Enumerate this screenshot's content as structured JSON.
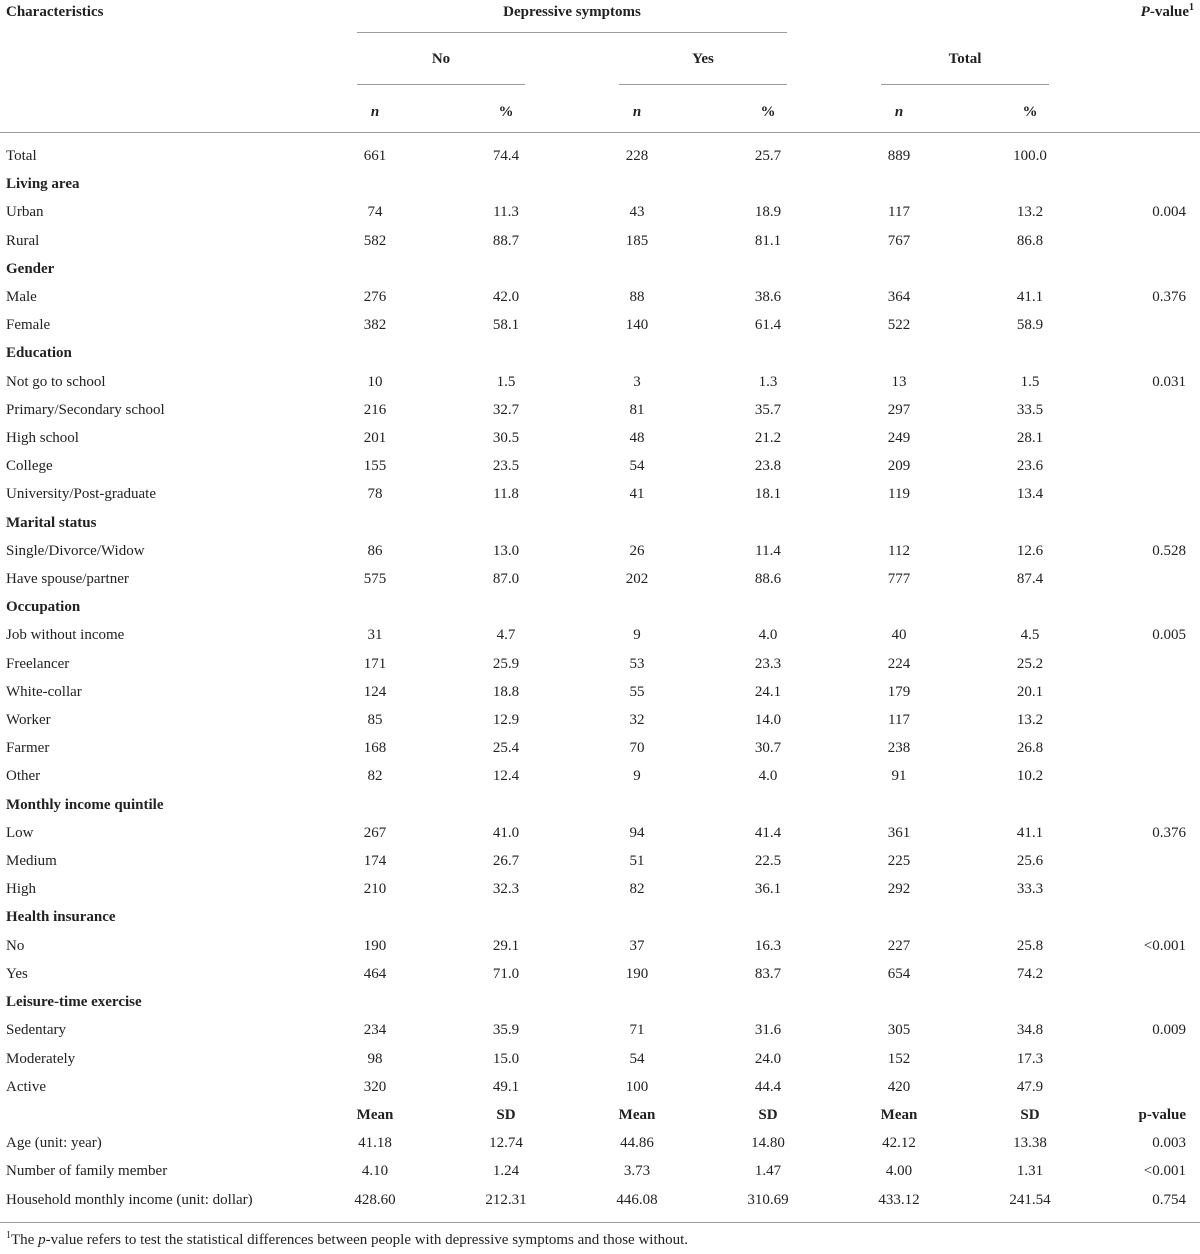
{
  "header": {
    "characteristics": "Characteristics",
    "depressive_symptoms": "Depressive symptoms",
    "p_value_label": "P",
    "p_value_suffix": "-value",
    "p_value_sup": "1",
    "no": "No",
    "yes": "Yes",
    "total": "Total",
    "n": "n",
    "percent": "%"
  },
  "rows": [
    {
      "type": "data",
      "label": "Total",
      "cells": [
        "661",
        "74.4",
        "228",
        "25.7",
        "889",
        "100.0"
      ],
      "p": ""
    },
    {
      "type": "section",
      "label": "Living area"
    },
    {
      "type": "data",
      "label": "Urban",
      "cells": [
        "74",
        "11.3",
        "43",
        "18.9",
        "117",
        "13.2"
      ],
      "p": "0.004"
    },
    {
      "type": "data",
      "label": "Rural",
      "cells": [
        "582",
        "88.7",
        "185",
        "81.1",
        "767",
        "86.8"
      ],
      "p": ""
    },
    {
      "type": "section",
      "label": "Gender"
    },
    {
      "type": "data",
      "label": "Male",
      "cells": [
        "276",
        "42.0",
        "88",
        "38.6",
        "364",
        "41.1"
      ],
      "p": "0.376"
    },
    {
      "type": "data",
      "label": "Female",
      "cells": [
        "382",
        "58.1",
        "140",
        "61.4",
        "522",
        "58.9"
      ],
      "p": ""
    },
    {
      "type": "section",
      "label": "Education"
    },
    {
      "type": "data",
      "label": "Not go to school",
      "cells": [
        "10",
        "1.5",
        "3",
        "1.3",
        "13",
        "1.5"
      ],
      "p": "0.031"
    },
    {
      "type": "data",
      "label": "Primary/Secondary school",
      "cells": [
        "216",
        "32.7",
        "81",
        "35.7",
        "297",
        "33.5"
      ],
      "p": ""
    },
    {
      "type": "data",
      "label": "High school",
      "cells": [
        "201",
        "30.5",
        "48",
        "21.2",
        "249",
        "28.1"
      ],
      "p": ""
    },
    {
      "type": "data",
      "label": "College",
      "cells": [
        "155",
        "23.5",
        "54",
        "23.8",
        "209",
        "23.6"
      ],
      "p": ""
    },
    {
      "type": "data",
      "label": "University/Post-graduate",
      "cells": [
        "78",
        "11.8",
        "41",
        "18.1",
        "119",
        "13.4"
      ],
      "p": ""
    },
    {
      "type": "section",
      "label": "Marital status"
    },
    {
      "type": "data",
      "label": "Single/Divorce/Widow",
      "cells": [
        "86",
        "13.0",
        "26",
        "11.4",
        "112",
        "12.6"
      ],
      "p": "0.528"
    },
    {
      "type": "data",
      "label": "Have spouse/partner",
      "cells": [
        "575",
        "87.0",
        "202",
        "88.6",
        "777",
        "87.4"
      ],
      "p": ""
    },
    {
      "type": "section",
      "label": "Occupation"
    },
    {
      "type": "data",
      "label": "Job without income",
      "cells": [
        "31",
        "4.7",
        "9",
        "4.0",
        "40",
        "4.5"
      ],
      "p": "0.005"
    },
    {
      "type": "data",
      "label": "Freelancer",
      "cells": [
        "171",
        "25.9",
        "53",
        "23.3",
        "224",
        "25.2"
      ],
      "p": ""
    },
    {
      "type": "data",
      "label": "White-collar",
      "cells": [
        "124",
        "18.8",
        "55",
        "24.1",
        "179",
        "20.1"
      ],
      "p": ""
    },
    {
      "type": "data",
      "label": "Worker",
      "cells": [
        "85",
        "12.9",
        "32",
        "14.0",
        "117",
        "13.2"
      ],
      "p": ""
    },
    {
      "type": "data",
      "label": "Farmer",
      "cells": [
        "168",
        "25.4",
        "70",
        "30.7",
        "238",
        "26.8"
      ],
      "p": ""
    },
    {
      "type": "data",
      "label": "Other",
      "cells": [
        "82",
        "12.4",
        "9",
        "4.0",
        "91",
        "10.2"
      ],
      "p": ""
    },
    {
      "type": "section",
      "label": "Monthly income quintile"
    },
    {
      "type": "data",
      "label": "Low",
      "cells": [
        "267",
        "41.0",
        "94",
        "41.4",
        "361",
        "41.1"
      ],
      "p": "0.376"
    },
    {
      "type": "data",
      "label": "Medium",
      "cells": [
        "174",
        "26.7",
        "51",
        "22.5",
        "225",
        "25.6"
      ],
      "p": ""
    },
    {
      "type": "data",
      "label": "High",
      "cells": [
        "210",
        "32.3",
        "82",
        "36.1",
        "292",
        "33.3"
      ],
      "p": ""
    },
    {
      "type": "section",
      "label": "Health insurance"
    },
    {
      "type": "data",
      "label": "No",
      "cells": [
        "190",
        "29.1",
        "37",
        "16.3",
        "227",
        "25.8"
      ],
      "p": "<0.001"
    },
    {
      "type": "data",
      "label": "Yes",
      "cells": [
        "464",
        "71.0",
        "190",
        "83.7",
        "654",
        "74.2"
      ],
      "p": ""
    },
    {
      "type": "section",
      "label": "Leisure-time exercise"
    },
    {
      "type": "data",
      "label": "Sedentary",
      "cells": [
        "234",
        "35.9",
        "71",
        "31.6",
        "305",
        "34.8"
      ],
      "p": "0.009"
    },
    {
      "type": "data",
      "label": "Moderately",
      "cells": [
        "98",
        "15.0",
        "54",
        "24.0",
        "152",
        "17.3"
      ],
      "p": ""
    },
    {
      "type": "data",
      "label": "Active",
      "cells": [
        "320",
        "49.1",
        "100",
        "44.4",
        "420",
        "47.9"
      ],
      "p": ""
    },
    {
      "type": "subhead",
      "label": "",
      "cells": [
        "Mean",
        "SD",
        "Mean",
        "SD",
        "Mean",
        "SD"
      ],
      "p": "p-value"
    },
    {
      "type": "data",
      "label": "Age (unit: year)",
      "cells": [
        "41.18",
        "12.74",
        "44.86",
        "14.80",
        "42.12",
        "13.38"
      ],
      "p": "0.003"
    },
    {
      "type": "data",
      "label": "Number of family member",
      "cells": [
        "4.10",
        "1.24",
        "3.73",
        "1.47",
        "4.00",
        "1.31"
      ],
      "p": "<0.001"
    },
    {
      "type": "data",
      "label": "Household monthly income (unit: dollar)",
      "cells": [
        "428.60",
        "212.31",
        "446.08",
        "310.69",
        "433.12",
        "241.54"
      ],
      "p": "0.754"
    }
  ],
  "footnote": {
    "sup": "1",
    "text_before": "The ",
    "italic": "p",
    "text_after": "-value refers to test the statistical differences between people with depressive symptoms and those without."
  }
}
